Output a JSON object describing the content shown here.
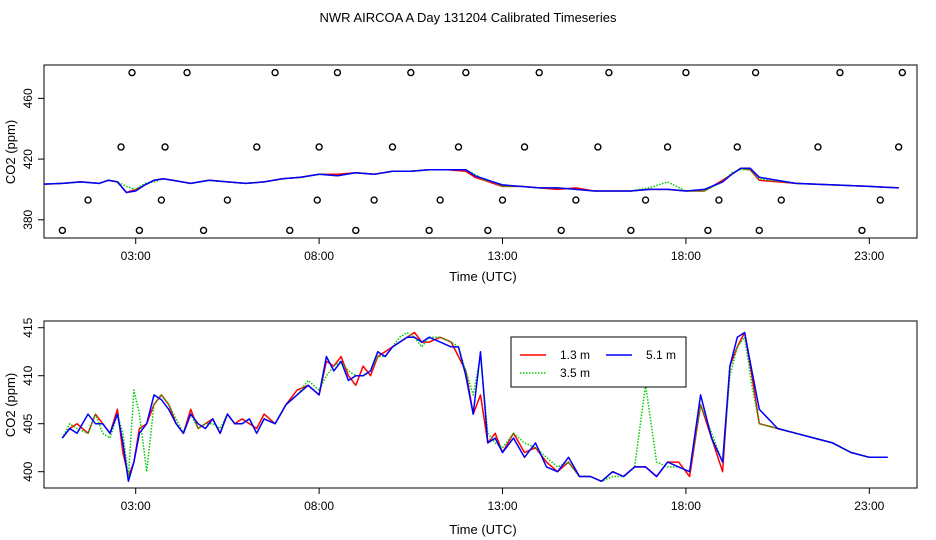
{
  "title": "NWR AIRCOA A  Day 131204  Calibrated Timeseries",
  "chart_data": [
    {
      "type": "line",
      "xlabel": "Time (UTC)",
      "ylabel": "CO2 (ppm)",
      "xlim": [
        0.5,
        24.3
      ],
      "ylim": [
        368,
        482
      ],
      "xticks": [
        3,
        8,
        13,
        18,
        23
      ],
      "xtick_labels": [
        "03:00",
        "08:00",
        "13:00",
        "18:00",
        "23:00"
      ],
      "yticks": [
        380,
        420,
        460
      ],
      "ytick_labels": [
        "380",
        "420",
        "460"
      ],
      "lines": [
        {
          "name": "1.3 m",
          "color": "#ff0000",
          "x": [
            0.5,
            1,
            1.5,
            2,
            2.25,
            2.5,
            2.75,
            3,
            3.25,
            3.5,
            3.75,
            4,
            4.5,
            5,
            5.5,
            6,
            6.5,
            7,
            7.5,
            8,
            8.5,
            9,
            9.5,
            10,
            10.5,
            11,
            11.5,
            12,
            12.25,
            12.5,
            12.75,
            13,
            13.5,
            14,
            14.5,
            15,
            15.5,
            16,
            16.5,
            17,
            17.5,
            18,
            18.5,
            19,
            19.25,
            19.5,
            19.75,
            20,
            21,
            22,
            23,
            23.8
          ],
          "y": [
            403.5,
            404,
            405,
            404,
            406,
            405,
            398,
            400,
            403,
            406,
            407,
            406,
            404,
            406,
            405,
            404,
            405,
            407,
            408,
            410,
            410,
            411,
            410,
            412,
            412,
            413,
            413,
            412,
            408,
            406,
            404,
            402,
            402,
            401,
            400,
            401,
            399,
            399,
            399,
            400,
            400,
            399,
            399,
            406,
            410,
            414,
            413,
            406,
            404,
            403,
            402,
            401
          ]
        },
        {
          "name": "3.5 m",
          "color": "#00cd00",
          "x": [
            0.5,
            1,
            1.5,
            2,
            2.25,
            2.5,
            2.75,
            3,
            3.25,
            3.5,
            3.75,
            4,
            4.5,
            5,
            5.5,
            6,
            6.5,
            7,
            7.5,
            8,
            8.5,
            9,
            9.5,
            10,
            10.5,
            11,
            11.5,
            12,
            12.25,
            12.5,
            12.75,
            13,
            13.5,
            14,
            14.5,
            15,
            15.5,
            16,
            16.5,
            17,
            17.5,
            18,
            18.5,
            19,
            19.25,
            19.5,
            19.75,
            20,
            21,
            22,
            23,
            23.8
          ],
          "y": [
            403.5,
            404,
            405,
            404,
            406,
            405,
            402,
            400,
            404,
            405,
            407,
            406,
            404,
            406,
            405,
            404,
            405,
            407,
            408,
            410,
            409,
            411,
            410,
            412,
            412,
            413,
            413,
            413,
            410,
            406,
            405,
            402,
            402,
            401,
            401,
            400,
            399,
            399,
            399,
            401,
            405,
            399,
            399,
            405,
            411,
            413,
            413,
            407,
            404,
            403,
            402,
            401
          ]
        },
        {
          "name": "5.1 m",
          "color": "#0000ff",
          "x": [
            0.5,
            1,
            1.5,
            2,
            2.25,
            2.5,
            2.75,
            3,
            3.25,
            3.5,
            3.75,
            4,
            4.5,
            5,
            5.5,
            6,
            6.5,
            7,
            7.5,
            8,
            8.5,
            9,
            9.5,
            10,
            10.5,
            11,
            11.5,
            12,
            12.25,
            12.5,
            12.75,
            13,
            13.5,
            14,
            14.5,
            15,
            15.5,
            16,
            16.5,
            17,
            17.5,
            18,
            18.5,
            19,
            19.25,
            19.5,
            19.75,
            20,
            21,
            22,
            23,
            23.8
          ],
          "y": [
            403.5,
            404,
            405,
            404,
            406,
            405,
            398,
            399,
            403,
            406,
            407,
            406,
            404,
            406,
            405,
            404,
            405,
            407,
            408,
            410,
            409,
            411,
            410,
            412,
            412,
            413,
            413,
            413,
            409,
            407,
            405,
            403,
            402,
            401,
            401,
            400,
            399,
            399,
            399,
            400,
            400,
            399,
            400,
            405,
            410,
            414,
            414,
            408,
            404,
            403,
            402,
            401
          ]
        }
      ],
      "points": {
        "x": [
          1,
          1.7,
          2.6,
          2.9,
          3.1,
          3.7,
          3.8,
          4.4,
          4.85,
          5.5,
          6.3,
          6.8,
          7.2,
          7.95,
          8,
          8.5,
          9,
          9.5,
          10,
          10.5,
          11,
          11.3,
          11.8,
          12,
          12.6,
          13,
          13.6,
          14,
          14.6,
          15,
          15.6,
          15.9,
          16.5,
          16.9,
          17.5,
          18,
          18.6,
          18.9,
          19.4,
          19.9,
          20,
          20.6,
          21.6,
          22.2,
          22.8,
          23.3,
          23.8,
          23.9
        ],
        "y": [
          373,
          393,
          428,
          477,
          373,
          393,
          428,
          477,
          373,
          393,
          428,
          477,
          373,
          393,
          428,
          477,
          373,
          393,
          428,
          477,
          373,
          393,
          428,
          477,
          373,
          393,
          428,
          477,
          373,
          393,
          428,
          477,
          373,
          393,
          428,
          477,
          373,
          393,
          428,
          477,
          373,
          393,
          428,
          477,
          373,
          393,
          428,
          477
        ]
      }
    },
    {
      "type": "line",
      "xlabel": "Time (UTC)",
      "ylabel": "CO2 (ppm)",
      "xlim": [
        0.5,
        24.3
      ],
      "ylim": [
        398.3,
        415.7
      ],
      "xticks": [
        3,
        8,
        13,
        18,
        23
      ],
      "xtick_labels": [
        "03:00",
        "08:00",
        "13:00",
        "18:00",
        "23:00"
      ],
      "yticks": [
        400,
        405,
        410,
        415
      ],
      "ytick_labels": [
        "400",
        "405",
        "410",
        "415"
      ],
      "legend": {
        "placement": "top-right-center",
        "labels": [
          "1.3 m",
          "3.5 m",
          "5.1 m"
        ]
      },
      "series": [
        {
          "name": "1.3 m",
          "color": "#ff0000",
          "x": [
            1,
            1.2,
            1.4,
            1.7,
            1.9,
            2.1,
            2.3,
            2.5,
            2.65,
            2.8,
            2.95,
            3.1,
            3.3,
            3.5,
            3.7,
            3.9,
            4.1,
            4.3,
            4.5,
            4.7,
            4.9,
            5.1,
            5.3,
            5.5,
            5.7,
            5.9,
            6.1,
            6.3,
            6.5,
            6.8,
            7.1,
            7.4,
            7.7,
            8,
            8.2,
            8.4,
            8.6,
            8.8,
            9,
            9.2,
            9.4,
            9.6,
            9.8,
            10,
            10.2,
            10.4,
            10.6,
            10.8,
            11,
            11.3,
            11.6,
            11.8,
            12,
            12.2,
            12.4,
            12.6,
            12.8,
            13,
            13.3,
            13.6,
            13.9,
            14.2,
            14.5,
            14.8,
            15.1,
            15.4,
            15.7,
            16,
            16.3,
            16.6,
            16.9,
            17.2,
            17.5,
            17.8,
            18.1,
            18.4,
            18.7,
            19,
            19.2,
            19.4,
            19.6,
            19.8,
            20,
            20.5,
            21,
            21.5,
            22,
            22.5,
            23,
            23.5
          ],
          "y": [
            403.5,
            404.5,
            405,
            404,
            406,
            405,
            404,
            406.5,
            402,
            399.5,
            401,
            404.5,
            405,
            407,
            408,
            407,
            405,
            404,
            406.5,
            404.5,
            405,
            405.5,
            404,
            406,
            405,
            405.5,
            405,
            404.5,
            406,
            405,
            407,
            408.5,
            409,
            408,
            411.5,
            411,
            412,
            410,
            409,
            411,
            410,
            412,
            412.5,
            413,
            413.5,
            414,
            414.5,
            413.5,
            413.5,
            414,
            413.5,
            412,
            410.5,
            406,
            408,
            403,
            404,
            402,
            404,
            402,
            402.5,
            401,
            400,
            401,
            399.5,
            399.5,
            399,
            400,
            399.5,
            400.5,
            400.5,
            399.5,
            401,
            401,
            399.5,
            407,
            403.5,
            400,
            411,
            413,
            414.5,
            410,
            405,
            404.5,
            404,
            403.5,
            403,
            402,
            401.5,
            401.5
          ]
        },
        {
          "name": "3.5 m",
          "color": "#00cd00",
          "x": [
            1,
            1.2,
            1.4,
            1.7,
            1.9,
            2.1,
            2.3,
            2.5,
            2.65,
            2.8,
            2.95,
            3.1,
            3.3,
            3.5,
            3.7,
            3.9,
            4.1,
            4.3,
            4.5,
            4.7,
            4.9,
            5.1,
            5.3,
            5.5,
            5.7,
            5.9,
            6.1,
            6.3,
            6.5,
            6.8,
            7.1,
            7.4,
            7.7,
            8,
            8.2,
            8.4,
            8.6,
            8.8,
            9,
            9.2,
            9.4,
            9.6,
            9.8,
            10,
            10.2,
            10.4,
            10.6,
            10.8,
            11,
            11.3,
            11.6,
            11.8,
            12,
            12.2,
            12.4,
            12.6,
            12.8,
            13,
            13.3,
            13.6,
            13.9,
            14.2,
            14.5,
            14.8,
            15.1,
            15.4,
            15.7,
            16,
            16.3,
            16.6,
            16.9,
            17.2,
            17.5,
            17.8,
            18.1,
            18.4,
            18.7,
            19,
            19.2,
            19.4,
            19.6,
            19.8,
            20,
            20.5,
            21,
            21.5,
            22,
            22.5,
            23,
            23.5
          ],
          "y": [
            403.5,
            405,
            404.5,
            404,
            406,
            404,
            403.5,
            406,
            404,
            399.5,
            408.5,
            406,
            400,
            407,
            408,
            407,
            405.5,
            404,
            406,
            404.5,
            405,
            405,
            404.5,
            406,
            405,
            405,
            405.5,
            404,
            405.5,
            405,
            407,
            408,
            409.5,
            408.5,
            410,
            411,
            411.5,
            410.5,
            410,
            410,
            410.5,
            412,
            412,
            413,
            414,
            414.5,
            414,
            413,
            414,
            414,
            413.5,
            413,
            410.5,
            408,
            412,
            404,
            403,
            402.5,
            404,
            403,
            402.5,
            401.5,
            400.5,
            401,
            399.5,
            399.5,
            399,
            399.5,
            399.5,
            400.5,
            409,
            401,
            400.5,
            400.5,
            400,
            407,
            404,
            401,
            410,
            413,
            414,
            409,
            405,
            404.5,
            404,
            403.5,
            403,
            402,
            401.5,
            401.5
          ]
        },
        {
          "name": "5.1 m",
          "color": "#0000ff",
          "x": [
            1,
            1.2,
            1.4,
            1.7,
            1.9,
            2.1,
            2.3,
            2.5,
            2.65,
            2.8,
            2.95,
            3.1,
            3.3,
            3.5,
            3.7,
            3.9,
            4.1,
            4.3,
            4.5,
            4.7,
            4.9,
            5.1,
            5.3,
            5.5,
            5.7,
            5.9,
            6.1,
            6.3,
            6.5,
            6.8,
            7.1,
            7.4,
            7.7,
            8,
            8.2,
            8.4,
            8.6,
            8.8,
            9,
            9.2,
            9.4,
            9.6,
            9.8,
            10,
            10.2,
            10.4,
            10.6,
            10.8,
            11,
            11.3,
            11.6,
            11.8,
            12,
            12.2,
            12.4,
            12.6,
            12.8,
            13,
            13.3,
            13.6,
            13.9,
            14.2,
            14.5,
            14.8,
            15.1,
            15.4,
            15.7,
            16,
            16.3,
            16.6,
            16.9,
            17.2,
            17.5,
            17.8,
            18.1,
            18.4,
            18.7,
            19,
            19.2,
            19.4,
            19.6,
            19.8,
            20,
            20.5,
            21,
            21.5,
            22,
            22.5,
            23,
            23.5
          ],
          "y": [
            403.5,
            404.5,
            404,
            406,
            405,
            405,
            404,
            406,
            403,
            399,
            401,
            404,
            405,
            408,
            407.5,
            406.5,
            405,
            404,
            406,
            405,
            404.5,
            405.5,
            404,
            406,
            405,
            405,
            405.5,
            404,
            405.5,
            405,
            407,
            408,
            409,
            408,
            412,
            410.5,
            411.5,
            409.5,
            410,
            410,
            410.5,
            412.5,
            412,
            413,
            413.5,
            414,
            414,
            413.5,
            414,
            413.5,
            413,
            413,
            410,
            406,
            412.5,
            403,
            403.5,
            402,
            403.5,
            401.5,
            403,
            400.5,
            400,
            401.5,
            399.5,
            399.5,
            399,
            400,
            399.5,
            400.5,
            400.5,
            399.5,
            401,
            400.5,
            400,
            408,
            403.5,
            401,
            411,
            414,
            414.5,
            410.5,
            406.5,
            404.5,
            404,
            403.5,
            403,
            402,
            401.5,
            401.5
          ]
        }
      ]
    }
  ]
}
